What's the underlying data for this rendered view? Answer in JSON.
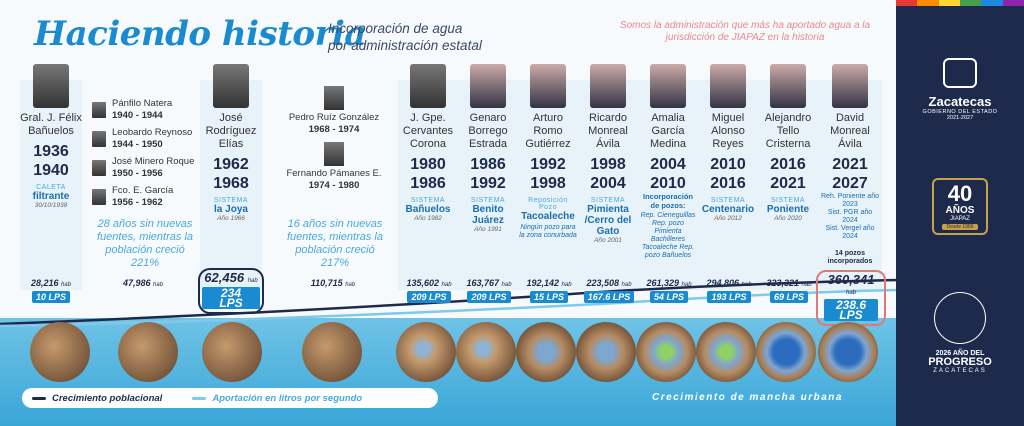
{
  "header": {
    "title": "Haciendo historia",
    "subtitle_line1": "Incorporación de agua",
    "subtitle_line2": "por administración estatal",
    "tagline": "Somos la administración que más ha aportado agua a la jurisdicción de JIAPAZ en la historia"
  },
  "colors": {
    "primary_blue": "#1a8bd0",
    "navy": "#1d2a4b",
    "light_blue": "#4aa9dc",
    "accent_red": "#e07878"
  },
  "timeline": [
    {
      "name": "Gral. J. Félix Bañuelos",
      "years": [
        "1936",
        "1940"
      ],
      "system_label": "CALETA",
      "source": "filtrante",
      "date": "30/10/1938",
      "population": "28,216",
      "pop_unit": "hab",
      "lps": "10 LPS"
    },
    {
      "group": [
        {
          "name": "Pánfilo Natera",
          "years": "1940 - 1944"
        },
        {
          "name": "Leobardo Reynoso",
          "years": "1944 - 1950"
        },
        {
          "name": "José Minero Roque",
          "years": "1950 - 1956"
        },
        {
          "name": "Fco. E. García",
          "years": "1956 - 1962"
        }
      ],
      "era_text": "28 años sin nuevas fuentes, mientras la población creció 221%",
      "population": "47,986",
      "pop_unit": "hab"
    },
    {
      "name": "José Rodríguez Elías",
      "years": [
        "1962",
        "1968"
      ],
      "system_label": "SISTEMA",
      "source": "la Joya",
      "date": "Año 1966",
      "population": "62,456",
      "pop_unit": "hab",
      "lps": "234 LPS"
    },
    {
      "group": [
        {
          "name": "Pedro Ruíz González",
          "years": "1968 - 1974"
        },
        {
          "name": "Fernando Pámanes E.",
          "years": "1974 - 1980"
        }
      ],
      "era_text": "16 años sin nuevas fuentes, mientras la población creció 217%",
      "population": "110,715",
      "pop_unit": "hab"
    },
    {
      "name": "J. Gpe. Cervantes Corona",
      "years": [
        "1980",
        "1986"
      ],
      "system_label": "SISTEMA",
      "source": "Bañuelos",
      "date": "Año 1982",
      "population": "135,602",
      "pop_unit": "hab",
      "lps": "209 LPS"
    },
    {
      "name": "Genaro Borrego Estrada",
      "years": [
        "1986",
        "1992"
      ],
      "system_label": "SISTEMA",
      "source": "Benito Juárez",
      "date": "Año 1991",
      "population": "163,767",
      "pop_unit": "hab",
      "lps": "209 LPS"
    },
    {
      "name": "Arturo Romo Gutiérrez",
      "years": [
        "1992",
        "1998"
      ],
      "system_label": "Reposición Pozo",
      "source": "Tacoaleche",
      "note": "Ningún pozo para la zona conurbada",
      "population": "192,142",
      "pop_unit": "hab",
      "lps": "15 LPS"
    },
    {
      "name": "Ricardo Monreal Ávila",
      "years": [
        "1998",
        "2004"
      ],
      "system_label": "SISTEMA",
      "source": "Pimienta /Cerro del Gato",
      "date": "Año 2001",
      "population": "223,508",
      "pop_unit": "hab",
      "lps": "167.6 LPS"
    },
    {
      "name": "Amalia García Medina",
      "years": [
        "2004",
        "2010"
      ],
      "source": "Incorporación de pozos:",
      "note": "Rep. Cieneguillas Rep. pozo Pimienta Bachilleres Tacoaleche Rep. pozo Bañuelos",
      "population": "261,329",
      "pop_unit": "hab",
      "lps": "54 LPS"
    },
    {
      "name": "Miguel Alonso Reyes",
      "years": [
        "2010",
        "2016"
      ],
      "system_label": "SISTEMA",
      "source": "Centenario",
      "date": "Año 2012",
      "population": "294,806",
      "pop_unit": "hab",
      "lps": "193 LPS"
    },
    {
      "name": "Alejandro Tello Cristerna",
      "years": [
        "2016",
        "2021"
      ],
      "system_label": "SISTEMA",
      "source": "Poniente",
      "date": "Año 2020",
      "population": "323,321",
      "pop_unit": "hab",
      "lps": "69 LPS"
    },
    {
      "name": "David Monreal Ávila",
      "years": [
        "2021",
        "2027"
      ],
      "source_lines": [
        "Reh. Poniente año 2023",
        "Sist. PGR año 2024",
        "Sist. Vergel año 2024"
      ],
      "pozos": "14 pozos incorporados",
      "population": "360,341",
      "pop_unit": "hab",
      "lps": "238.6 LPS"
    }
  ],
  "legend": {
    "growth": "Crecimiento poblacional",
    "contribution": "Aportación en litros por segundo",
    "urban": "Crecimiento de mancha urbana"
  },
  "sidebar": {
    "zacatecas": "Zacatecas",
    "gov_line": "GOBIERNO DEL ESTADO",
    "gov_years": "2021-2027",
    "anniv_num": "40",
    "anniv_word": "AÑOS",
    "anniv_org": "JIAPAZ",
    "anniv_since": "Desde 1986",
    "progreso_line1": "2026 AÑO DEL",
    "progreso_line2": "PROGRESO",
    "progreso_line3": "ZACATECAS"
  }
}
